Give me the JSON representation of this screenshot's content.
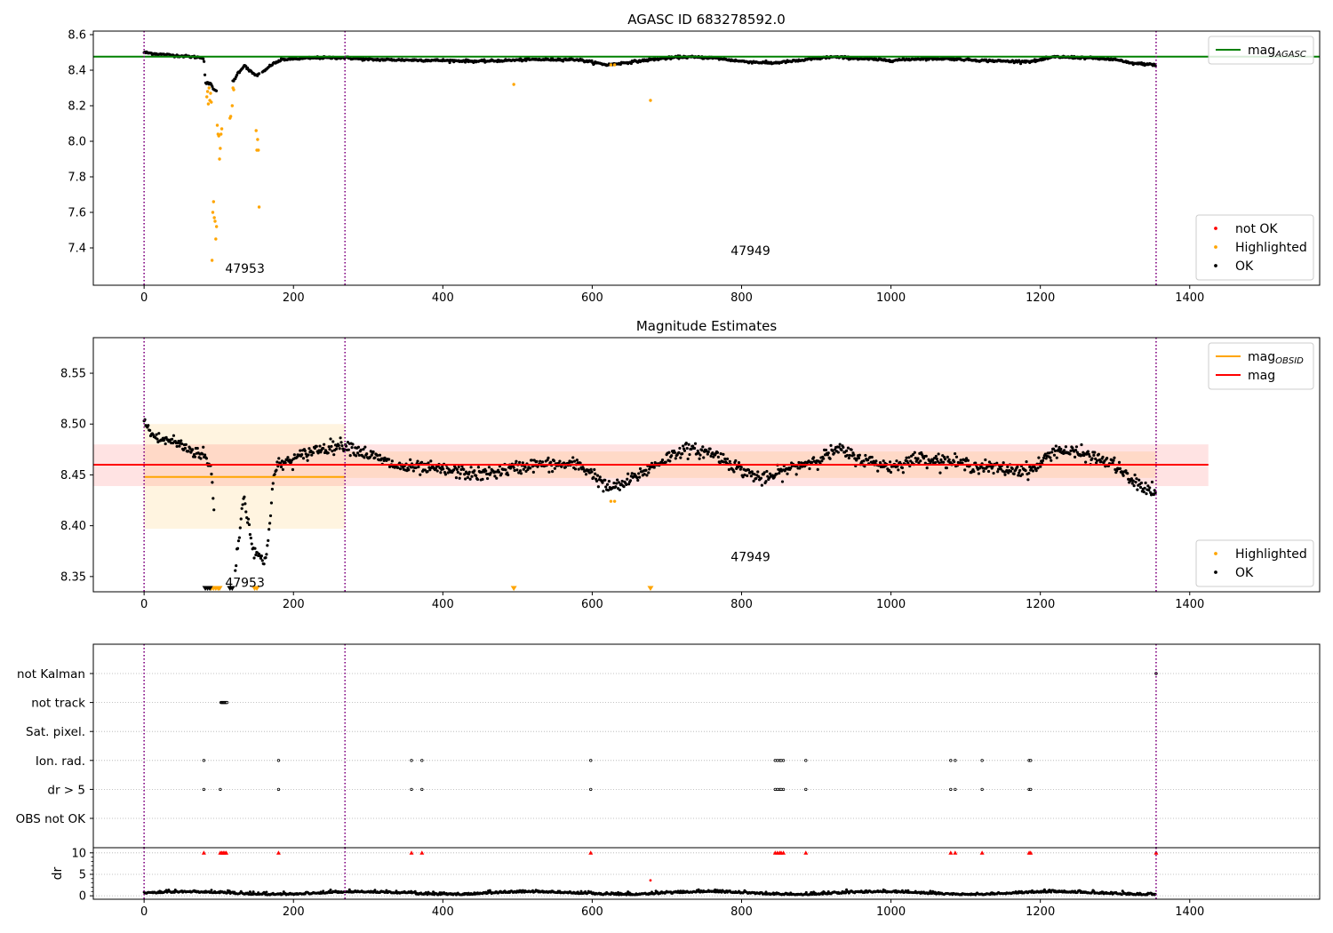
{
  "colors": {
    "ok": "#000000",
    "highlighted": "#ffa500",
    "not_ok": "#ff0000",
    "agasc_line": "#008000",
    "mag_line": "#ff0000",
    "obsid_line": "#ffa500",
    "obsid_boundary": "#800080",
    "grid": "#b0b0b0"
  },
  "chart_data": [
    {
      "type": "scatter",
      "title": "AGASC ID 683278592.0",
      "xlim": [
        -68,
        1574
      ],
      "ylim": [
        7.19,
        8.62
      ],
      "xticks": [
        0,
        200,
        400,
        600,
        800,
        1000,
        1200,
        1400
      ],
      "yticks": [
        7.4,
        7.6,
        7.8,
        8.0,
        8.2,
        8.4,
        8.6
      ],
      "xticklabels": [
        "0",
        "200",
        "400",
        "600",
        "800",
        "1000",
        "1200",
        "1400"
      ],
      "yticklabels": [
        "7.4",
        "7.6",
        "7.8",
        "8.0",
        "8.2",
        "8.4",
        "8.6"
      ],
      "obsid_boundaries": [
        0,
        269,
        1355
      ],
      "obsid_labels": [
        {
          "text": "47953",
          "x": 135,
          "y": 7.26
        },
        {
          "text": "47949",
          "x": 812,
          "y": 7.36
        }
      ],
      "hlines": [
        {
          "name": "mag_AGASC",
          "y": 8.476,
          "x_from": -68,
          "x_to": 1574,
          "color": "#008000"
        }
      ],
      "legends": [
        {
          "position": "upper right",
          "entries": [
            {
              "label": "mag",
              "sub": "AGASC",
              "kind": "line",
              "color": "#008000"
            }
          ]
        },
        {
          "position": "lower right",
          "entries": [
            {
              "label": "not OK",
              "kind": "dot",
              "color": "#ff0000"
            },
            {
              "label": "Highlighted",
              "kind": "dot",
              "color": "#ffa500"
            },
            {
              "label": "OK",
              "kind": "dot",
              "color": "#000000"
            }
          ]
        }
      ],
      "series": [
        {
          "name": "OK",
          "kind": "trend",
          "color": "#000000",
          "points": [
            [
              0,
              8.5
            ],
            [
              20,
              8.49
            ],
            [
              50,
              8.48
            ],
            [
              80,
              8.47
            ],
            [
              82,
              8.33
            ],
            [
              90,
              8.32
            ],
            [
              95,
              8.28
            ],
            [
              100,
              8.29
            ],
            [
              120,
              8.34
            ],
            [
              125,
              8.38
            ],
            [
              135,
              8.43
            ],
            [
              140,
              8.4
            ],
            [
              150,
              8.37
            ],
            [
              160,
              8.39
            ],
            [
              170,
              8.43
            ],
            [
              175,
              8.44
            ],
            [
              185,
              8.46
            ],
            [
              230,
              8.47
            ],
            [
              269,
              8.47
            ],
            [
              300,
              8.46
            ],
            [
              400,
              8.455
            ],
            [
              450,
              8.45
            ],
            [
              520,
              8.46
            ],
            [
              580,
              8.46
            ],
            [
              620,
              8.43
            ],
            [
              640,
              8.44
            ],
            [
              680,
              8.46
            ],
            [
              720,
              8.475
            ],
            [
              760,
              8.47
            ],
            [
              800,
              8.45
            ],
            [
              840,
              8.44
            ],
            [
              880,
              8.455
            ],
            [
              920,
              8.475
            ],
            [
              960,
              8.465
            ],
            [
              1000,
              8.455
            ],
            [
              1040,
              8.465
            ],
            [
              1080,
              8.465
            ],
            [
              1120,
              8.455
            ],
            [
              1160,
              8.45
            ],
            [
              1190,
              8.45
            ],
            [
              1220,
              8.475
            ],
            [
              1260,
              8.47
            ],
            [
              1300,
              8.46
            ],
            [
              1320,
              8.44
            ],
            [
              1355,
              8.43
            ]
          ],
          "gaps": [
            [
              97,
              118
            ],
            [
              155,
              158
            ]
          ],
          "step": 1.1,
          "noise": 0.006
        },
        {
          "name": "Highlighted",
          "kind": "points",
          "color": "#ffa500",
          "points": [
            [
              84,
              8.25
            ],
            [
              85,
              8.28
            ],
            [
              86,
              8.21
            ],
            [
              87,
              8.3
            ],
            [
              88,
              8.23
            ],
            [
              89,
              8.27
            ],
            [
              90,
              8.22
            ],
            [
              91,
              7.33
            ],
            [
              92,
              7.6
            ],
            [
              93,
              7.66
            ],
            [
              94,
              7.57
            ],
            [
              95,
              7.55
            ],
            [
              96,
              7.45
            ],
            [
              97,
              7.52
            ],
            [
              98,
              8.09
            ],
            [
              99,
              8.04
            ],
            [
              100,
              8.03
            ],
            [
              101,
              7.9
            ],
            [
              102,
              7.96
            ],
            [
              103,
              8.04
            ],
            [
              104,
              8.07
            ],
            [
              115,
              8.13
            ],
            [
              116,
              8.14
            ],
            [
              118,
              8.2
            ],
            [
              119,
              8.3
            ],
            [
              120,
              8.29
            ],
            [
              150,
              8.06
            ],
            [
              151,
              7.95
            ],
            [
              152,
              8.01
            ],
            [
              153,
              7.95
            ],
            [
              154,
              7.63
            ],
            [
              495,
              8.32
            ],
            [
              625,
              8.43
            ],
            [
              630,
              8.43
            ],
            [
              678,
              8.23
            ]
          ]
        }
      ]
    },
    {
      "type": "scatter",
      "title": "Magnitude Estimates",
      "xlim": [
        -68,
        1574
      ],
      "ylim": [
        8.335,
        8.585
      ],
      "xticks": [
        0,
        200,
        400,
        600,
        800,
        1000,
        1200,
        1400
      ],
      "yticks": [
        8.35,
        8.4,
        8.45,
        8.5,
        8.55
      ],
      "xticklabels": [
        "0",
        "200",
        "400",
        "600",
        "800",
        "1000",
        "1200",
        "1400"
      ],
      "yticklabels": [
        "8.35",
        "8.40",
        "8.45",
        "8.50",
        "8.55"
      ],
      "obsid_boundaries": [
        0,
        269,
        1355
      ],
      "obsid_labels": [
        {
          "text": "47953",
          "x": 135,
          "y": 8.34
        },
        {
          "text": "47949",
          "x": 812,
          "y": 8.365
        }
      ],
      "bands": [
        {
          "x_from": 0,
          "x_to": 269,
          "y_from": 8.397,
          "y_to": 8.5,
          "color": "#ffa500",
          "opacity": 0.12
        },
        {
          "x_from": 269,
          "x_to": 1355,
          "y_from": 8.447,
          "y_to": 8.473,
          "color": "#ffa500",
          "opacity": 0.12
        },
        {
          "x_from": -68,
          "x_to": 1425,
          "y_from": 8.439,
          "y_to": 8.48,
          "color": "#ff0000",
          "opacity": 0.11
        }
      ],
      "hlines": [
        {
          "name": "mag_OBSID",
          "y": 8.448,
          "x_from": 0,
          "x_to": 269,
          "color": "#ffa500"
        },
        {
          "name": "mag_OBSID",
          "y": 8.46,
          "x_from": 269,
          "x_to": 1355,
          "color": "#ffa500"
        },
        {
          "name": "mag",
          "y": 8.46,
          "x_from": -68,
          "x_to": 1425,
          "color": "#ff0000"
        }
      ],
      "legends": [
        {
          "position": "upper right",
          "entries": [
            {
              "label": "mag",
              "sub": "OBSID",
              "kind": "line",
              "color": "#ffa500"
            },
            {
              "label": "mag",
              "kind": "line",
              "color": "#ff0000"
            }
          ]
        },
        {
          "position": "lower right",
          "entries": [
            {
              "label": "Highlighted",
              "kind": "dot",
              "color": "#ffa500"
            },
            {
              "label": "OK",
              "kind": "dot",
              "color": "#000000"
            }
          ]
        }
      ],
      "series": [
        {
          "name": "OK",
          "kind": "trend",
          "color": "#000000",
          "points": [
            [
              0,
              8.502
            ],
            [
              10,
              8.49
            ],
            [
              20,
              8.485
            ],
            [
              40,
              8.483
            ],
            [
              60,
              8.475
            ],
            [
              80,
              8.47
            ],
            [
              90,
              8.455
            ],
            [
              100,
              8.34
            ],
            [
              110,
              8.34
            ],
            [
              118,
              8.34
            ],
            [
              124,
              8.37
            ],
            [
              128,
              8.395
            ],
            [
              133,
              8.43
            ],
            [
              138,
              8.41
            ],
            [
              145,
              8.38
            ],
            [
              155,
              8.37
            ],
            [
              160,
              8.36
            ],
            [
              165,
              8.38
            ],
            [
              170,
              8.42
            ],
            [
              174,
              8.45
            ],
            [
              180,
              8.46
            ],
            [
              200,
              8.465
            ],
            [
              230,
              8.475
            ],
            [
              269,
              8.48
            ],
            [
              300,
              8.47
            ],
            [
              340,
              8.458
            ],
            [
              400,
              8.455
            ],
            [
              450,
              8.45
            ],
            [
              520,
              8.46
            ],
            [
              580,
              8.46
            ],
            [
              600,
              8.452
            ],
            [
              620,
              8.437
            ],
            [
              640,
              8.44
            ],
            [
              680,
              8.458
            ],
            [
              720,
              8.475
            ],
            [
              760,
              8.472
            ],
            [
              800,
              8.455
            ],
            [
              830,
              8.445
            ],
            [
              860,
              8.455
            ],
            [
              900,
              8.465
            ],
            [
              930,
              8.475
            ],
            [
              960,
              8.465
            ],
            [
              1000,
              8.458
            ],
            [
              1040,
              8.467
            ],
            [
              1080,
              8.463
            ],
            [
              1120,
              8.458
            ],
            [
              1160,
              8.455
            ],
            [
              1190,
              8.455
            ],
            [
              1220,
              8.475
            ],
            [
              1260,
              8.47
            ],
            [
              1300,
              8.46
            ],
            [
              1320,
              8.445
            ],
            [
              1355,
              8.432
            ]
          ],
          "gaps": [
            [
              94,
              122
            ]
          ],
          "step": 1.1,
          "noise": 0.006
        },
        {
          "name": "Highlighted",
          "kind": "points",
          "color": "#ffa500",
          "points": [
            [
              625,
              8.424
            ],
            [
              630,
              8.424
            ]
          ]
        },
        {
          "name": "Highlighted (below axis)",
          "kind": "markers-down",
          "color": "#ffa500",
          "points": [
            [
              90,
              8.339
            ],
            [
              93,
              8.339
            ],
            [
              96,
              8.339
            ],
            [
              99,
              8.339
            ],
            [
              101,
              8.339
            ],
            [
              148,
              8.339
            ],
            [
              151,
              8.339
            ],
            [
              495,
              8.339
            ],
            [
              678,
              8.339
            ]
          ]
        },
        {
          "name": "OK (below axis)",
          "kind": "markers-down",
          "color": "#000000",
          "points": [
            [
              82,
              8.339
            ],
            [
              85,
              8.339
            ],
            [
              88,
              8.339
            ],
            [
              115,
              8.339
            ],
            [
              118,
              8.339
            ]
          ]
        }
      ]
    },
    {
      "type": "scatter",
      "title": "",
      "xlim": [
        -68,
        1574
      ],
      "ylabel": "dr",
      "categories": [
        "not Kalman",
        "not track",
        "Sat. pixel.",
        "Ion. rad.",
        "dr > 5",
        "OBS not OK"
      ],
      "flags": {
        "not Kalman": [
          1355
        ],
        "not track": [
          103,
          104,
          105,
          106,
          107,
          108,
          109,
          110,
          111
        ],
        "Sat. pixel.": [],
        "Ion. rad.": [
          80,
          180,
          358,
          372,
          598,
          845,
          848,
          851,
          853,
          856,
          886,
          1080,
          1086,
          1122,
          1185,
          1187
        ],
        "dr > 5": [
          80,
          102,
          180,
          358,
          372,
          598,
          845,
          848,
          851,
          853,
          856,
          886,
          1080,
          1086,
          1122,
          1185,
          1187
        ],
        "OBS not OK": []
      },
      "dr": {
        "ylim": [
          -0.8,
          11.2
        ],
        "yticks": [
          0,
          5,
          10
        ],
        "yticklabels": [
          "0",
          "5",
          "10"
        ],
        "clipped_markers": [
          80,
          102,
          104,
          106,
          108,
          110,
          180,
          358,
          372,
          598,
          845,
          848,
          851,
          853,
          856,
          886,
          1080,
          1086,
          1122,
          1185,
          1187,
          1355
        ],
        "outliers": [
          [
            678,
            3.6
          ]
        ],
        "baseline": 0.5
      },
      "xticks": [
        0,
        200,
        400,
        600,
        800,
        1000,
        1200,
        1400
      ],
      "xticklabels": [
        "0",
        "200",
        "400",
        "600",
        "800",
        "1000",
        "1200",
        "1400"
      ],
      "obsid_boundaries": [
        0,
        269,
        1355
      ]
    }
  ]
}
